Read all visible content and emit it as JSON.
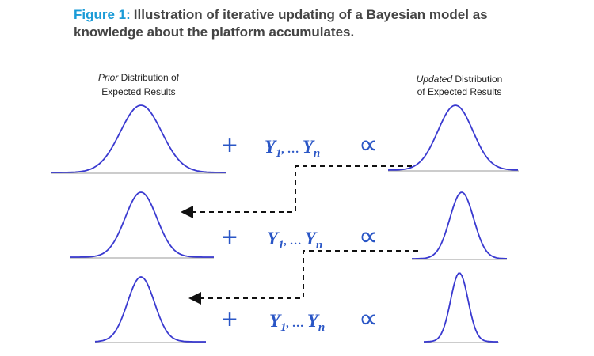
{
  "header": {
    "label": "Figure 1:",
    "caption_lines": [
      "Illustration of iterative updating of a Bayesian model as",
      "knowledge about the platform accumulates."
    ]
  },
  "prior_heading": {
    "emphasis": "Prior",
    "line1_rest": " Distribution of",
    "line2": "Expected Results"
  },
  "updated_heading": {
    "emphasis": "Updated",
    "line1_rest": " Distribution",
    "line2": "of Expected Results"
  },
  "rows": [
    {
      "operator": "+",
      "symbol": "Y",
      "first_index": "1",
      "ellipsis": ", … ",
      "last_index": "n",
      "relation": "∝"
    },
    {
      "operator": "+",
      "symbol": "Y",
      "first_index": "1",
      "ellipsis": ", … ",
      "last_index": "n",
      "relation": "∝"
    },
    {
      "operator": "+",
      "symbol": "Y",
      "first_index": "1",
      "ellipsis": ", … ",
      "last_index": "n",
      "relation": "∝"
    }
  ]
}
